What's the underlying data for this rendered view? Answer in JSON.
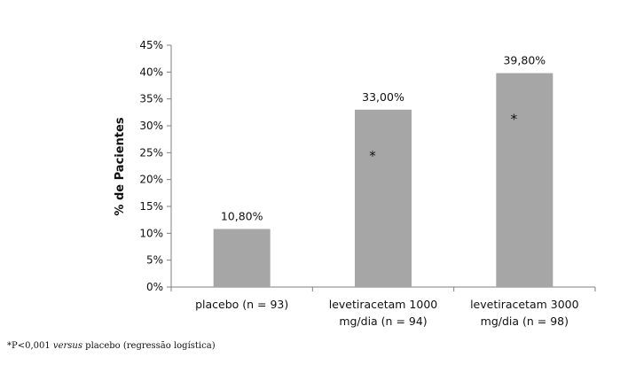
{
  "chart_data": {
    "type": "bar",
    "categories": [
      [
        "placebo (n = 93)"
      ],
      [
        "levetiracetam 1000",
        "mg/dia (n = 94)"
      ],
      [
        "levetiracetam 3000",
        "mg/dia (n = 98)"
      ]
    ],
    "values": [
      10.8,
      33.0,
      39.8
    ],
    "data_labels": [
      "10,80%",
      "33,00%",
      "39,80%"
    ],
    "significance_markers": [
      "",
      "*",
      "*"
    ],
    "ylabel": "% de Pacientes",
    "ylim": [
      0,
      45
    ],
    "yticks": [
      0,
      5,
      10,
      15,
      20,
      25,
      30,
      35,
      40,
      45
    ],
    "ytick_labels": [
      "0%",
      "5%",
      "10%",
      "15%",
      "20%",
      "25%",
      "30%",
      "35%",
      "40%",
      "45%"
    ],
    "grid": false,
    "bar_color": "#a6a6a6",
    "axis_color": "#7f7f7f"
  },
  "footnote": {
    "prefix": "*P<0,001 ",
    "italic": "versus",
    "suffix": " placebo (regressão logística)"
  }
}
